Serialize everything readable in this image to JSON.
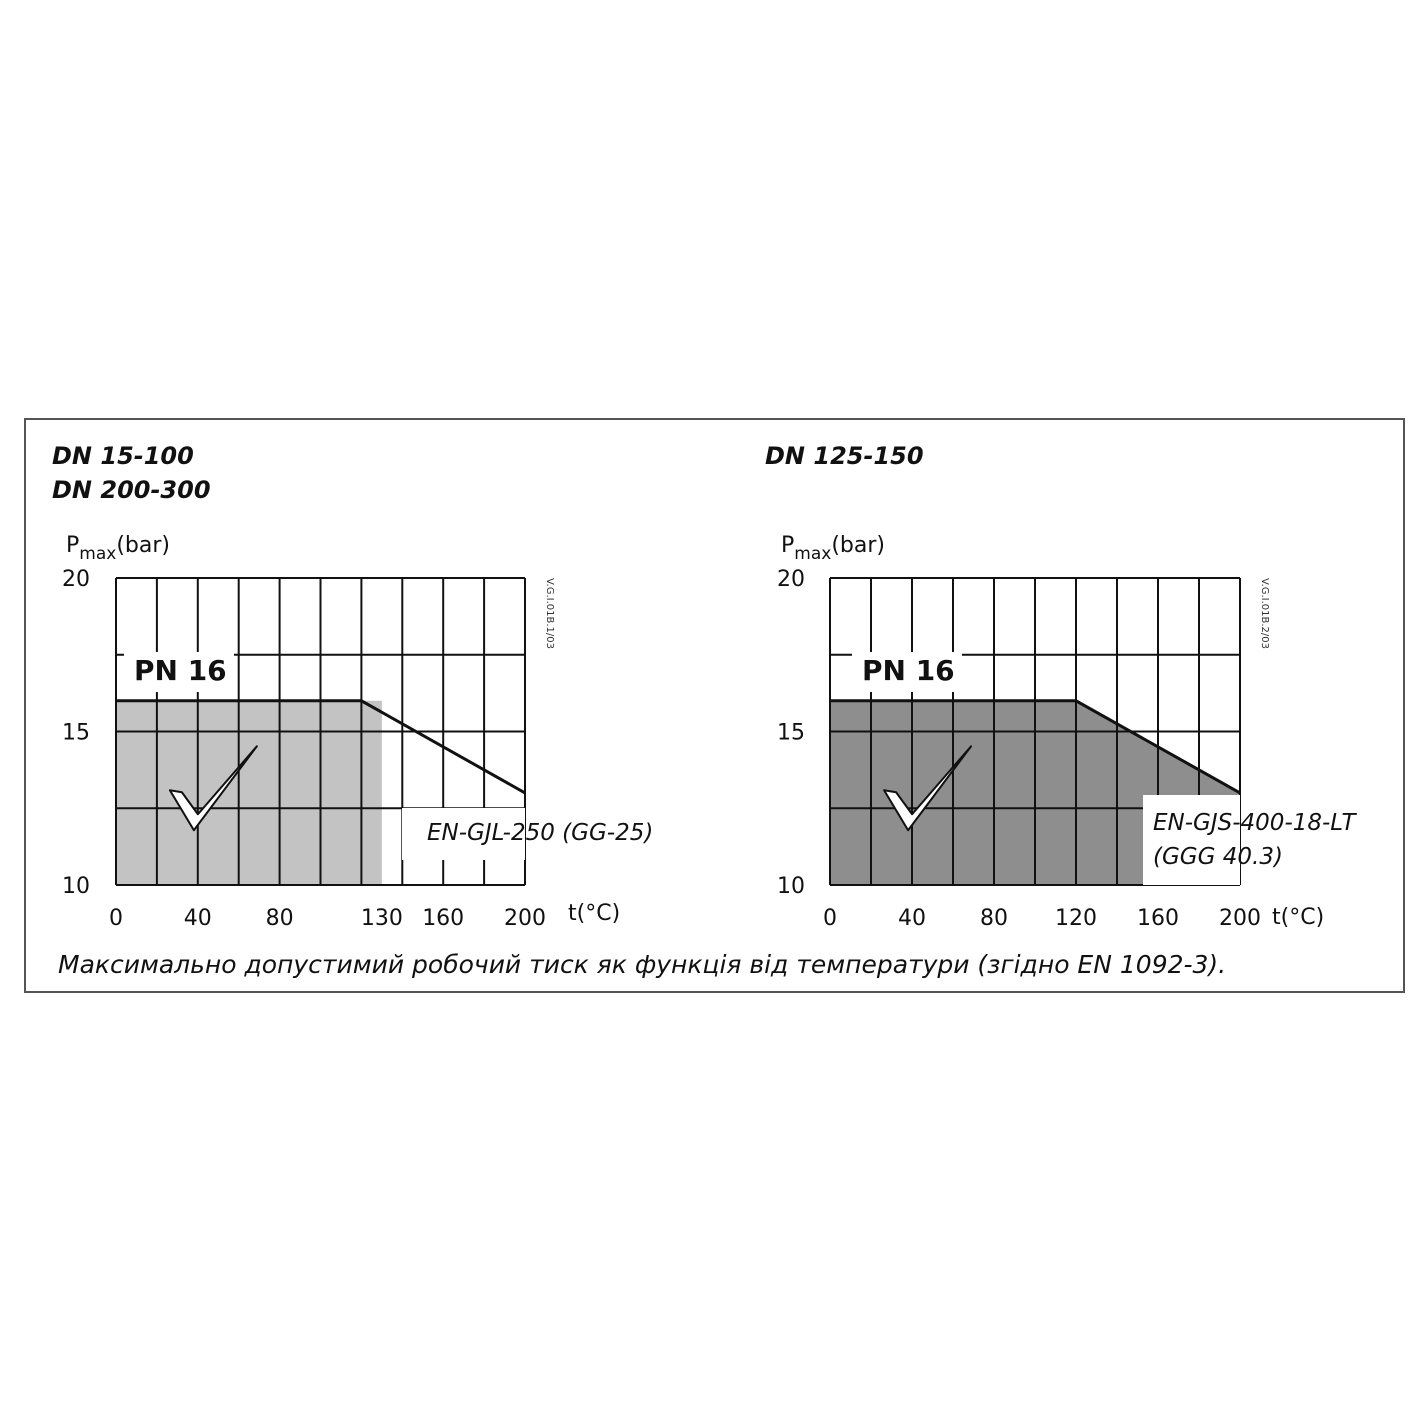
{
  "caption": "Максимально допустимий робочий тиск як функція від температури (згідно EN 1092-3).",
  "chart_data": [
    {
      "type": "area",
      "headings": [
        "DN 15-100",
        "DN 200-300"
      ],
      "y_label_main": "P",
      "y_label_sub": "max",
      "y_label_unit": "(bar)",
      "x_label": "t(°C)",
      "xlim": [
        0,
        200
      ],
      "ylim": [
        10,
        20
      ],
      "x_ticks": [
        "0",
        "40",
        "80",
        "130",
        "160",
        "200"
      ],
      "x_tick_values": [
        0,
        40,
        80,
        130,
        160,
        200
      ],
      "y_ticks": [
        "10",
        "15",
        "20"
      ],
      "y_tick_values": [
        10,
        15,
        20
      ],
      "grid_x": [
        0,
        20,
        40,
        60,
        80,
        100,
        120,
        140,
        160,
        180,
        200
      ],
      "grid_y": [
        10,
        12.5,
        15,
        17.5,
        20
      ],
      "rating_label": "PN 16",
      "material_label": [
        "EN-GJL-250 (GG-25)"
      ],
      "drawing_code": "V.G.I.01B.1/03",
      "pressure_curve": {
        "x": [
          0,
          120,
          200
        ],
        "y": [
          16,
          16,
          13
        ]
      },
      "allowed_region": {
        "x_max": 130,
        "y_max": 16
      },
      "fill_color": "#c3c3c3",
      "checkmark": "check-mark-icon"
    },
    {
      "type": "area",
      "headings": [
        "DN 125-150"
      ],
      "y_label_main": "P",
      "y_label_sub": "max",
      "y_label_unit": "(bar)",
      "x_label": "t(°C)",
      "xlim": [
        0,
        200
      ],
      "ylim": [
        10,
        20
      ],
      "x_ticks": [
        "0",
        "40",
        "80",
        "120",
        "160",
        "200"
      ],
      "x_tick_values": [
        0,
        40,
        80,
        120,
        160,
        200
      ],
      "y_ticks": [
        "10",
        "15",
        "20"
      ],
      "y_tick_values": [
        10,
        15,
        20
      ],
      "grid_x": [
        0,
        20,
        40,
        60,
        80,
        100,
        120,
        140,
        160,
        180,
        200
      ],
      "grid_y": [
        10,
        12.5,
        15,
        17.5,
        20
      ],
      "rating_label": "PN 16",
      "material_label": [
        "EN-GJS-400-18-LT",
        "(GGG 40.3)"
      ],
      "drawing_code": "V.G.I.01B.2/03",
      "pressure_curve": {
        "x": [
          0,
          120,
          200
        ],
        "y": [
          16,
          16,
          13
        ]
      },
      "allowed_region": {
        "follows_curve": true
      },
      "fill_color": "#8e8e8e",
      "checkmark": "check-mark-icon"
    }
  ]
}
